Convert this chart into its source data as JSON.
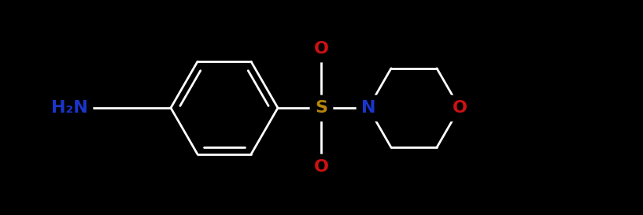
{
  "background_color": "#000000",
  "bond_color": "#ffffff",
  "bond_lw": 2.0,
  "figsize": [
    8.17,
    2.73
  ],
  "dpi": 100,
  "colors": {
    "S": "#b8860b",
    "N": "#1a35cc",
    "O": "#cc1111",
    "C": "#ffffff",
    "H2N": "#1a35cc"
  },
  "font_size": 14
}
